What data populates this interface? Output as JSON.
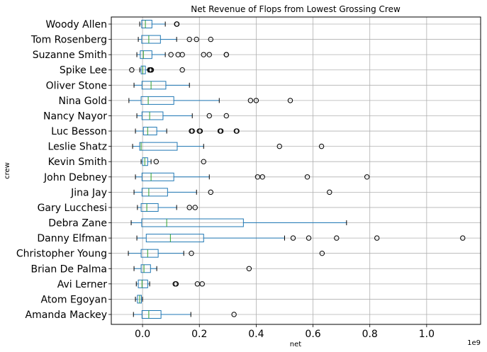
{
  "chart_data": {
    "type": "boxplot",
    "orientation": "horizontal",
    "title": "Net Revenue of Flops from Lowest Grossing Crew",
    "xlabel": "net",
    "ylabel": "crew",
    "x_offset_label": "1e9",
    "xlim": [
      -0.11,
      1.19
    ],
    "x_ticks": [
      0.0,
      0.2,
      0.4,
      0.6,
      0.8,
      1.0
    ],
    "x_tick_labels": [
      "0.0",
      "0.2",
      "0.4",
      "0.6",
      "0.8",
      "1.0"
    ],
    "grid": true,
    "colors": {
      "box": "#1f77b4",
      "median": "#2ca02c",
      "whisker": "#1f77b4",
      "cap": "#000000",
      "flier": "#000000",
      "grid": "#b0b0b0"
    },
    "categories": [
      "Woody Allen",
      "Tom Rosenberg",
      "Suzanne Smith",
      "Spike Lee",
      "Oliver Stone",
      "Nina Gold",
      "Nancy Nayor",
      "Luc Besson",
      "Leslie Shatz",
      "Kevin Smith",
      "John Debney",
      "Jina Jay",
      "Gary Lucchesi",
      "Debra Zane",
      "Danny Elfman",
      "Christopher Young",
      "Brian De Palma",
      "Avi Lerner",
      "Atom Egoyan",
      "Amanda Mackey"
    ],
    "boxes": [
      {
        "crew": "Woody Allen",
        "whislo": -0.01,
        "q1": -0.003,
        "med": 0.01,
        "q3": 0.033,
        "whishi": 0.08,
        "fliers": [
          0.12,
          0.121
        ]
      },
      {
        "crew": "Tom Rosenberg",
        "whislo": -0.015,
        "q1": -0.003,
        "med": 0.022,
        "q3": 0.063,
        "whishi": 0.12,
        "fliers": [
          0.165,
          0.19,
          0.24
        ]
      },
      {
        "crew": "Suzanne Smith",
        "whislo": -0.02,
        "q1": -0.008,
        "med": 0.003,
        "q3": 0.033,
        "whishi": 0.08,
        "fliers": [
          0.1,
          0.125,
          0.14,
          0.215,
          0.235,
          0.295,
          0.295
        ]
      },
      {
        "crew": "Spike Lee",
        "whislo": -0.01,
        "q1": -0.005,
        "med": 0.001,
        "q3": 0.01,
        "whishi": 0.02,
        "fliers": [
          -0.038,
          0.025,
          0.028,
          0.031,
          0.14
        ]
      },
      {
        "crew": "Oliver Stone",
        "whislo": -0.03,
        "q1": -0.002,
        "med": 0.03,
        "q3": 0.082,
        "whishi": 0.165,
        "fliers": []
      },
      {
        "crew": "Nina Gold",
        "whislo": -0.048,
        "q1": -0.005,
        "med": 0.02,
        "q3": 0.11,
        "whishi": 0.27,
        "fliers": [
          0.38,
          0.4,
          0.52
        ]
      },
      {
        "crew": "Nancy Nayor",
        "whislo": -0.02,
        "q1": -0.002,
        "med": 0.025,
        "q3": 0.072,
        "whishi": 0.175,
        "fliers": [
          0.235,
          0.295
        ]
      },
      {
        "crew": "Luc Besson",
        "whislo": -0.025,
        "q1": 0.003,
        "med": 0.018,
        "q3": 0.05,
        "whishi": 0.085,
        "fliers": [
          0.172,
          0.175,
          0.2,
          0.203,
          0.273,
          0.276,
          0.33,
          0.332
        ]
      },
      {
        "crew": "Leslie Shatz",
        "whislo": -0.035,
        "q1": -0.01,
        "med": -0.005,
        "q3": 0.122,
        "whishi": 0.215,
        "fliers": [
          0.482,
          0.63
        ]
      },
      {
        "crew": "Kevin Smith",
        "whislo": -0.005,
        "q1": 0.0,
        "med": 0.008,
        "q3": 0.018,
        "whishi": 0.03,
        "fliers": [
          0.048,
          0.215
        ]
      },
      {
        "crew": "John Debney",
        "whislo": -0.025,
        "q1": -0.002,
        "med": 0.03,
        "q3": 0.11,
        "whishi": 0.235,
        "fliers": [
          0.405,
          0.422,
          0.58,
          0.79
        ]
      },
      {
        "crew": "Jina Jay",
        "whislo": -0.03,
        "q1": -0.002,
        "med": 0.022,
        "q3": 0.088,
        "whishi": 0.19,
        "fliers": [
          0.24,
          0.658
        ]
      },
      {
        "crew": "Gary Lucchesi",
        "whislo": -0.018,
        "q1": -0.005,
        "med": 0.015,
        "q3": 0.055,
        "whishi": 0.12,
        "fliers": [
          0.165,
          0.185
        ]
      },
      {
        "crew": "Debra Zane",
        "whislo": -0.04,
        "q1": -0.003,
        "med": 0.085,
        "q3": 0.355,
        "whishi": 0.718,
        "fliers": []
      },
      {
        "crew": "Danny Elfman",
        "whislo": -0.02,
        "q1": 0.013,
        "med": 0.098,
        "q3": 0.215,
        "whishi": 0.5,
        "fliers": [
          0.53,
          0.585,
          0.683,
          0.825,
          1.127
        ]
      },
      {
        "crew": "Christopher Young",
        "whislo": -0.05,
        "q1": -0.005,
        "med": 0.018,
        "q3": 0.055,
        "whishi": 0.145,
        "fliers": [
          0.172,
          0.632
        ]
      },
      {
        "crew": "Brian De Palma",
        "whislo": -0.03,
        "q1": -0.005,
        "med": 0.005,
        "q3": 0.028,
        "whishi": 0.05,
        "fliers": [
          0.375
        ]
      },
      {
        "crew": "Avi Lerner",
        "whislo": -0.022,
        "q1": -0.015,
        "med": -0.002,
        "q3": 0.018,
        "whishi": 0.025,
        "fliers": [
          0.115,
          0.118,
          0.193,
          0.21
        ]
      },
      {
        "crew": "Atom Egoyan",
        "whislo": -0.025,
        "q1": -0.018,
        "med": -0.01,
        "q3": -0.004,
        "whishi": 0.0,
        "fliers": []
      },
      {
        "crew": "Amanda Mackey",
        "whislo": -0.032,
        "q1": -0.002,
        "med": 0.022,
        "q3": 0.065,
        "whishi": 0.17,
        "fliers": [
          0.322
        ]
      }
    ]
  }
}
